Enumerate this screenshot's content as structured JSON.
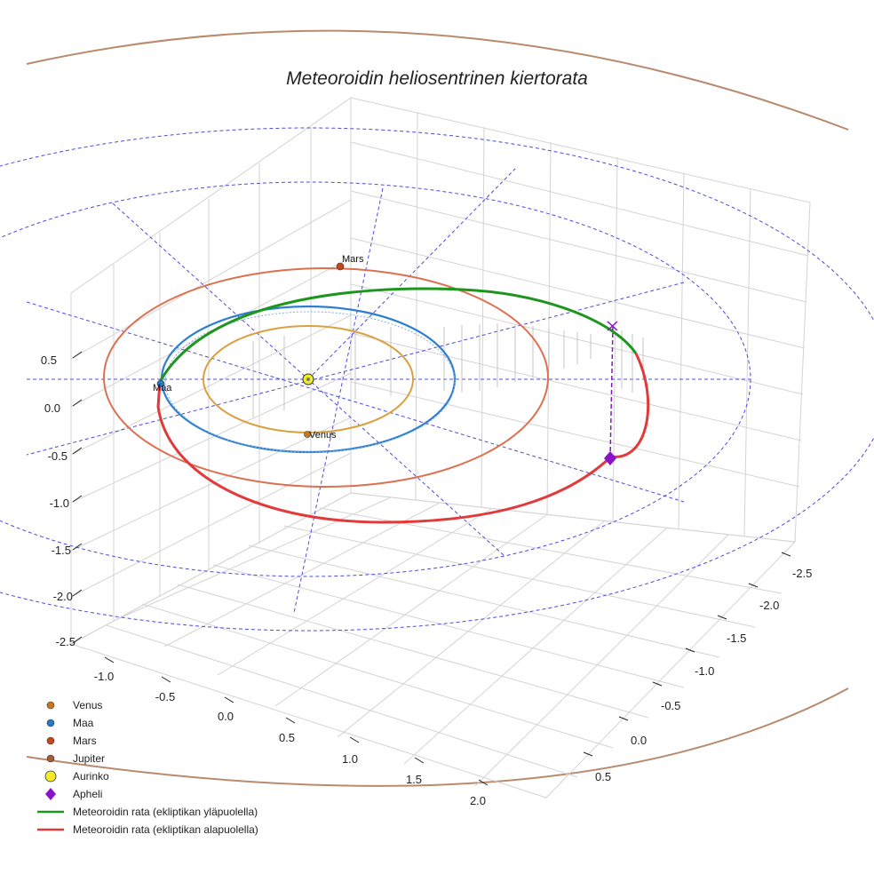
{
  "chart_data": {
    "type": "line",
    "title": "Meteoroidin heliosentrinen kiertorata",
    "projection": "3d",
    "axes": {
      "x": {
        "label": "",
        "ticks": [
          "-1.0",
          "-0.5",
          "0.0",
          "0.5",
          "1.0",
          "1.5",
          "2.0"
        ]
      },
      "y": {
        "label": "",
        "ticks": [
          "-2.5",
          "-2.0",
          "-1.5",
          "-1.0",
          "-0.5",
          "0.0",
          "0.5"
        ]
      },
      "z": {
        "label": "",
        "ticks": [
          "0.5",
          "0.0",
          "-0.5",
          "-1.0",
          "-1.5",
          "-2.0",
          "-2.5"
        ]
      }
    },
    "orbits": [
      {
        "name": "Venus",
        "semi_major_au": 0.72,
        "color": "#d9a142"
      },
      {
        "name": "Maa",
        "semi_major_au": 1.0,
        "color": "#2f7fd0"
      },
      {
        "name": "Mars",
        "semi_major_au": 1.52,
        "color": "#dd7050"
      },
      {
        "name": "Jupiter",
        "semi_major_au": 5.2,
        "color": "#b98a6e"
      }
    ],
    "planet_labels": [
      "Mars",
      "Maa",
      "Venus"
    ],
    "meteoroid": {
      "above_ecliptic_color": "#1e961e",
      "below_ecliptic_color": "#e23a3a",
      "aphelion_color": "#8a12c9"
    },
    "legend": [
      {
        "label": "Venus",
        "marker": "circle",
        "color": "#c67a1f"
      },
      {
        "label": "Maa",
        "marker": "circle",
        "color": "#2879c4"
      },
      {
        "label": "Mars",
        "marker": "circle",
        "color": "#c8461e"
      },
      {
        "label": "Jupiter",
        "marker": "circle",
        "color": "#a45a35"
      },
      {
        "label": "Aurinko",
        "marker": "circle-large",
        "color": "#f4ec2a"
      },
      {
        "label": "Apheli",
        "marker": "diamond",
        "color": "#8a12c9"
      },
      {
        "label": "Meteoroidin rata (ekliptikan yläpuolella)",
        "marker": "line",
        "color": "#1e961e"
      },
      {
        "label": "Meteoroidin rata (ekliptikan alapuolella)",
        "marker": "line",
        "color": "#e23a3a"
      }
    ]
  }
}
